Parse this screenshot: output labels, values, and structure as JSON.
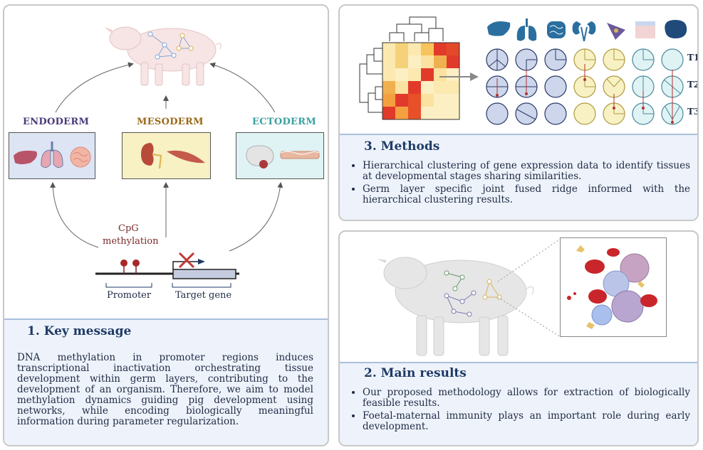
{
  "panel1": {
    "layers": [
      {
        "label": "ENDODERM",
        "color": "#4a3a7a"
      },
      {
        "label": "MESODERM",
        "color": "#9a6a1a"
      },
      {
        "label": "ECTODERM",
        "color": "#3aa0a0"
      }
    ],
    "cpg_label_line1": "CpG",
    "cpg_label_line2": "methylation",
    "promoter_label": "Promoter",
    "target_gene_label": "Target gene",
    "caption_title": "1.  Key message",
    "caption_text": "DNA methylation in promoter regions induces transcriptional inactivation orchestrating tissue development within germ layers, contributing to the development of an organism. Therefore, we aim to model methylation dynamics guiding pig development using networks, while encoding biologically meaningful information during parameter regularization."
  },
  "panel3": {
    "timepoints": [
      "T1",
      "T2",
      "T3"
    ],
    "caption_title": "3.  Methods",
    "bullets": [
      "Hierarchical clustering of gene expression data to identify tissues at developmental stages sharing similarities.",
      "Germ layer specific joint fused ridge informed with the hierarchical clustering results."
    ]
  },
  "panel2": {
    "caption_title": "2.  Main results",
    "bullets": [
      "Our proposed methodology allows for extraction of biologically feasible results.",
      "Foetal-maternal immunity plays an important role during early development."
    ]
  },
  "colors": {
    "caption_bg": "#eef3fb",
    "caption_border": "#a9bfdc",
    "endo_box": "#dde4f4",
    "meso_box": "#f7f1c4",
    "ecto_box": "#dff3f5"
  }
}
